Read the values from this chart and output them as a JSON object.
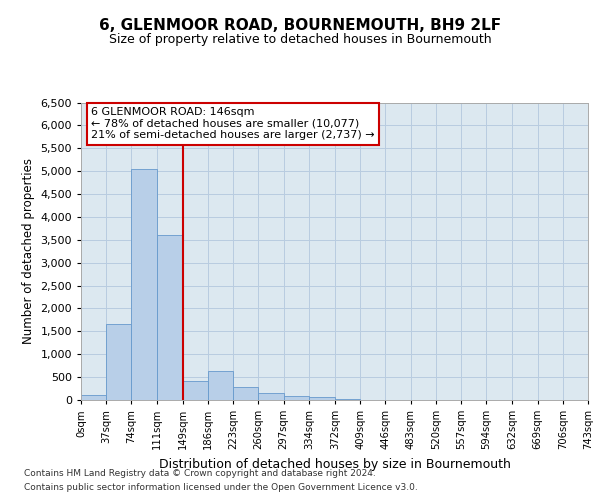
{
  "title": "6, GLENMOOR ROAD, BOURNEMOUTH, BH9 2LF",
  "subtitle": "Size of property relative to detached houses in Bournemouth",
  "xlabel": "Distribution of detached houses by size in Bournemouth",
  "ylabel": "Number of detached properties",
  "property_label": "6 GLENMOOR ROAD: 146sqm",
  "annotation_line1": "← 78% of detached houses are smaller (10,077)",
  "annotation_line2": "21% of semi-detached houses are larger (2,737) →",
  "bin_edges": [
    0,
    37,
    74,
    111,
    149,
    186,
    223,
    260,
    297,
    334,
    372,
    409,
    446,
    483,
    520,
    557,
    594,
    632,
    669,
    706,
    743
  ],
  "bin_labels": [
    "0sqm",
    "37sqm",
    "74sqm",
    "111sqm",
    "149sqm",
    "186sqm",
    "223sqm",
    "260sqm",
    "297sqm",
    "334sqm",
    "372sqm",
    "409sqm",
    "446sqm",
    "483sqm",
    "520sqm",
    "557sqm",
    "594sqm",
    "632sqm",
    "669sqm",
    "706sqm",
    "743sqm"
  ],
  "bar_values": [
    100,
    1650,
    5050,
    3600,
    420,
    630,
    290,
    150,
    90,
    55,
    30,
    10,
    5,
    0,
    0,
    0,
    0,
    0,
    0,
    0
  ],
  "bar_color": "#b8cfe8",
  "bar_edge_color": "#6699cc",
  "vline_color": "#cc0000",
  "vline_x": 149,
  "annotation_box_color": "#cc0000",
  "plot_bg_color": "#dce8f0",
  "background_color": "#ffffff",
  "grid_color": "#b8cce0",
  "ylim": [
    0,
    6500
  ],
  "yticks": [
    0,
    500,
    1000,
    1500,
    2000,
    2500,
    3000,
    3500,
    4000,
    4500,
    5000,
    5500,
    6000,
    6500
  ],
  "footer_line1": "Contains HM Land Registry data © Crown copyright and database right 2024.",
  "footer_line2": "Contains public sector information licensed under the Open Government Licence v3.0."
}
